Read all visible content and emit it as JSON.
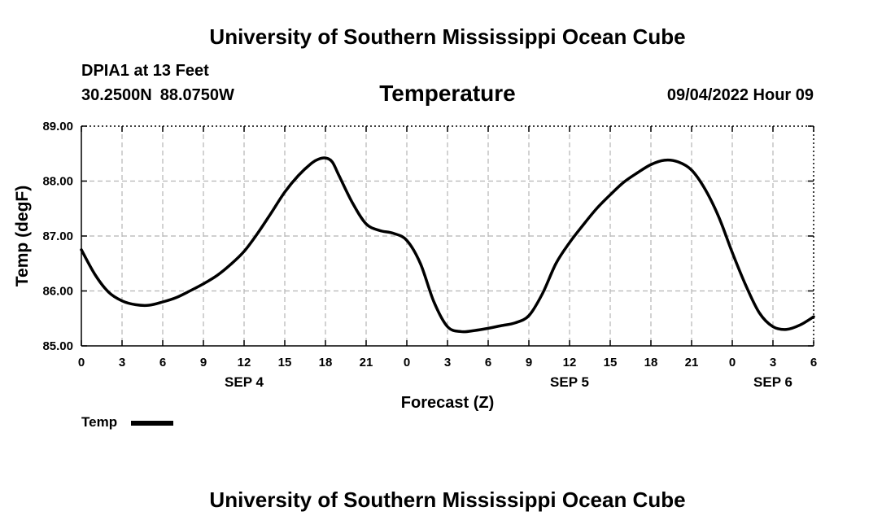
{
  "header": {
    "title": "University of Southern Mississippi Ocean Cube",
    "station": "DPIA1 at 13 Feet",
    "latitude": "30.2500N",
    "longitude": "88.0750W",
    "variable": "Temperature",
    "run_time": "09/04/2022 Hour 09"
  },
  "legend": {
    "label": "Temp",
    "color": "#000000"
  },
  "footer": {
    "title": "University of Southern Mississippi Ocean Cube"
  },
  "chart_data": {
    "type": "line",
    "xlabel": "Forecast (Z)",
    "ylabel": "Temp (degF)",
    "ylim": [
      85.0,
      89.0
    ],
    "xlim": [
      0,
      54
    ],
    "x_unit": "hours from 0Z SEP 4",
    "y_ticks": [
      "85.00",
      "86.00",
      "87.00",
      "88.00",
      "89.00"
    ],
    "x_ticks": [
      {
        "x": 0,
        "label": "0"
      },
      {
        "x": 3,
        "label": "3"
      },
      {
        "x": 6,
        "label": "6"
      },
      {
        "x": 9,
        "label": "9"
      },
      {
        "x": 12,
        "label": "12"
      },
      {
        "x": 15,
        "label": "15"
      },
      {
        "x": 18,
        "label": "18"
      },
      {
        "x": 21,
        "label": "21"
      },
      {
        "x": 24,
        "label": "0"
      },
      {
        "x": 27,
        "label": "3"
      },
      {
        "x": 30,
        "label": "6"
      },
      {
        "x": 33,
        "label": "9"
      },
      {
        "x": 36,
        "label": "12"
      },
      {
        "x": 39,
        "label": "15"
      },
      {
        "x": 42,
        "label": "18"
      },
      {
        "x": 45,
        "label": "21"
      },
      {
        "x": 48,
        "label": "0"
      },
      {
        "x": 51,
        "label": "3"
      },
      {
        "x": 54,
        "label": "6"
      }
    ],
    "date_labels": [
      {
        "x": 12,
        "label": "SEP 4"
      },
      {
        "x": 36,
        "label": "SEP 5"
      },
      {
        "x": 51,
        "label": "SEP 6"
      }
    ],
    "grid": true,
    "series": [
      {
        "name": "Temp",
        "color": "#000000",
        "x": [
          0,
          1,
          2,
          3,
          4,
          5,
          6,
          7,
          8,
          9,
          10,
          11,
          12,
          13,
          14,
          15,
          16,
          17,
          17.5,
          18,
          18.5,
          19,
          20,
          21,
          22,
          23,
          24,
          25,
          26,
          27,
          28,
          29,
          30,
          31,
          32,
          33,
          34,
          35,
          36,
          37,
          38,
          39,
          40,
          41,
          42,
          43,
          44,
          45,
          46,
          47,
          48,
          49,
          50,
          51,
          52,
          53,
          54
        ],
        "values": [
          86.75,
          86.3,
          85.98,
          85.82,
          85.75,
          85.74,
          85.8,
          85.88,
          86.0,
          86.13,
          86.28,
          86.48,
          86.72,
          87.05,
          87.42,
          87.8,
          88.1,
          88.33,
          88.4,
          88.42,
          88.35,
          88.1,
          87.6,
          87.22,
          87.1,
          87.05,
          86.92,
          86.5,
          85.8,
          85.35,
          85.26,
          85.28,
          85.32,
          85.37,
          85.42,
          85.55,
          85.95,
          86.5,
          86.88,
          87.2,
          87.5,
          87.75,
          87.98,
          88.15,
          88.3,
          88.38,
          88.35,
          88.2,
          87.85,
          87.35,
          86.7,
          86.1,
          85.6,
          85.35,
          85.3,
          85.38,
          85.53
        ]
      }
    ]
  }
}
